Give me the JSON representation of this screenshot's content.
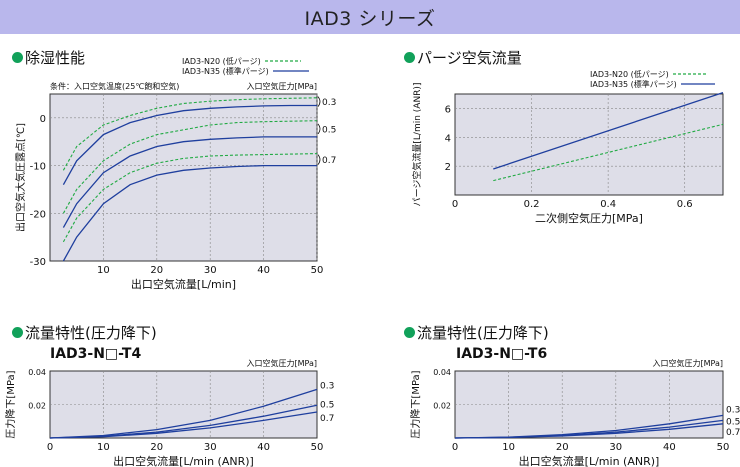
{
  "header": {
    "title": "IAD3 シリーズ"
  },
  "colors": {
    "header_bg": "#b9b7ec",
    "plot_bg": "#dedee8",
    "solid_series": "#1f3f9e",
    "dashed_series": "#22aa44",
    "bullet": "#11a15a"
  },
  "sections": {
    "dehumidify": {
      "title": "除湿性能"
    },
    "purge": {
      "title": "パージ空気流量"
    },
    "flow_t4": {
      "title": "流量特性(圧力降下)",
      "model": "IAD3-N□-T4"
    },
    "flow_t6": {
      "title": "流量特性(圧力降下)",
      "model": "IAD3-N□-T6"
    }
  },
  "legend": {
    "n20": "IAD3-N20 (低パージ)",
    "n35": "IAD3-N35 (標準パージ)"
  },
  "chart_data": [
    {
      "id": "dehumidify",
      "type": "line",
      "condition": "条件：入口空気温度(25℃飽和空気)",
      "pressure_unit": "入口空気圧力[MPa]",
      "xlabel": "出口空気流量[L/min]",
      "ylabel": "出口空気大気圧露点[℃]",
      "xlim": [
        0,
        50
      ],
      "ylim": [
        -30,
        5
      ],
      "xticks": [
        10,
        20,
        30,
        40,
        50
      ],
      "yticks": [
        0,
        -10,
        -20,
        -30
      ],
      "series": [
        {
          "name": "IAD3-N20 (低パージ)",
          "style": "dashed",
          "pressure": "0.3",
          "x": [
            2.5,
            5,
            10,
            15,
            20,
            25,
            30,
            35,
            40,
            45,
            50
          ],
          "y": [
            -11,
            -6,
            -1.5,
            0.5,
            2,
            3,
            3.5,
            3.8,
            4,
            4.1,
            4.2
          ]
        },
        {
          "name": "IAD3-N35 (標準パージ)",
          "style": "solid",
          "pressure": "0.3",
          "x": [
            2.5,
            5,
            10,
            15,
            20,
            25,
            30,
            35,
            40,
            45,
            50
          ],
          "y": [
            -14,
            -9,
            -3.5,
            -1,
            0.5,
            1.5,
            2,
            2.3,
            2.5,
            2.6,
            2.6
          ]
        },
        {
          "name": "IAD3-N20 (低パージ)",
          "style": "dashed",
          "pressure": "0.5",
          "x": [
            2.5,
            5,
            10,
            15,
            20,
            25,
            30,
            35,
            40,
            45,
            50
          ],
          "y": [
            -20,
            -15,
            -9,
            -5.5,
            -3.5,
            -2.5,
            -1.5,
            -1,
            -0.8,
            -0.7,
            -0.6
          ]
        },
        {
          "name": "IAD3-N35 (標準パージ)",
          "style": "solid",
          "pressure": "0.5",
          "x": [
            2.5,
            5,
            10,
            15,
            20,
            25,
            30,
            35,
            40,
            45,
            50
          ],
          "y": [
            -23,
            -18,
            -11.5,
            -8,
            -6,
            -5,
            -4.5,
            -4.2,
            -4,
            -4,
            -4
          ]
        },
        {
          "name": "IAD3-N20 (低パージ)",
          "style": "dashed",
          "pressure": "0.7",
          "x": [
            2.5,
            5,
            10,
            15,
            20,
            25,
            30,
            35,
            40,
            45,
            50
          ],
          "y": [
            -26,
            -21,
            -15,
            -11.5,
            -9.5,
            -8.5,
            -8,
            -7.8,
            -7.7,
            -7.6,
            -7.5
          ]
        },
        {
          "name": "IAD3-N35 (標準パージ)",
          "style": "solid",
          "pressure": "0.7",
          "x": [
            2.5,
            5,
            10,
            15,
            20,
            25,
            30,
            35,
            40,
            45,
            50
          ],
          "y": [
            -30,
            -25,
            -18,
            -14,
            -12,
            -11,
            -10.5,
            -10.2,
            -10,
            -10,
            -10
          ]
        }
      ],
      "pressure_labels": [
        "0.3",
        "0.5",
        "0.7"
      ]
    },
    {
      "id": "purge",
      "type": "line",
      "xlabel": "二次側空気圧力[MPa]",
      "ylabel": "パージ空気流量[L/min (ANR)]",
      "xlim": [
        0,
        0.7
      ],
      "ylim": [
        0,
        7
      ],
      "xticks": [
        "0",
        "0.2",
        "0.4",
        "0.6"
      ],
      "yticks": [
        2,
        4,
        6
      ],
      "series": [
        {
          "name": "IAD3-N20 (低パージ)",
          "style": "dashed",
          "x": [
            0.1,
            0.7
          ],
          "y": [
            1.0,
            4.9
          ]
        },
        {
          "name": "IAD3-N35 (標準パージ)",
          "style": "solid",
          "x": [
            0.1,
            0.7
          ],
          "y": [
            1.8,
            7.1
          ]
        }
      ]
    },
    {
      "id": "flow_t4",
      "type": "line",
      "xlabel": "出口空気流量[L/min (ANR)]",
      "ylabel": "圧力降下[MPa]",
      "pressure_unit": "入口空気圧力[MPa]",
      "xlim": [
        0,
        50
      ],
      "ylim": [
        0,
        0.04
      ],
      "xticks": [
        "0",
        "10",
        "20",
        "30",
        "40",
        "50"
      ],
      "yticks": [
        "0.04",
        "0.02"
      ],
      "series": [
        {
          "pressure": "0.3",
          "style": "solid",
          "x": [
            0,
            10,
            20,
            30,
            40,
            50
          ],
          "y": [
            0,
            0.0015,
            0.005,
            0.0105,
            0.019,
            0.029
          ]
        },
        {
          "pressure": "0.5",
          "style": "solid",
          "x": [
            0,
            10,
            20,
            30,
            40,
            50
          ],
          "y": [
            0,
            0.001,
            0.0035,
            0.0075,
            0.013,
            0.0195
          ]
        },
        {
          "pressure": "0.7",
          "style": "solid",
          "x": [
            0,
            10,
            20,
            30,
            40,
            50
          ],
          "y": [
            0,
            0.0008,
            0.0028,
            0.006,
            0.0105,
            0.0155
          ]
        }
      ],
      "pressure_labels": [
        "0.3",
        "0.5",
        "0.7"
      ]
    },
    {
      "id": "flow_t6",
      "type": "line",
      "xlabel": "出口空気流量[L/min (ANR)]",
      "ylabel": "圧力降下[MPa]",
      "pressure_unit": "入口空気圧力[MPa]",
      "xlim": [
        0,
        50
      ],
      "ylim": [
        0,
        0.04
      ],
      "xticks": [
        "0",
        "10",
        "20",
        "30",
        "40",
        "50"
      ],
      "yticks": [
        "0.04",
        "0.02"
      ],
      "series": [
        {
          "pressure": "0.3",
          "style": "solid",
          "x": [
            0,
            10,
            20,
            30,
            40,
            50
          ],
          "y": [
            0,
            0.0005,
            0.002,
            0.0045,
            0.0085,
            0.0135
          ]
        },
        {
          "pressure": "0.5",
          "style": "solid",
          "x": [
            0,
            10,
            20,
            30,
            40,
            50
          ],
          "y": [
            0,
            0.0004,
            0.0015,
            0.0035,
            0.0065,
            0.0105
          ]
        },
        {
          "pressure": "0.7",
          "style": "solid",
          "x": [
            0,
            10,
            20,
            30,
            40,
            50
          ],
          "y": [
            0,
            0.0003,
            0.0012,
            0.0028,
            0.0052,
            0.0085
          ]
        }
      ],
      "pressure_labels": [
        "0.3",
        "0.5",
        "0.7"
      ]
    }
  ]
}
